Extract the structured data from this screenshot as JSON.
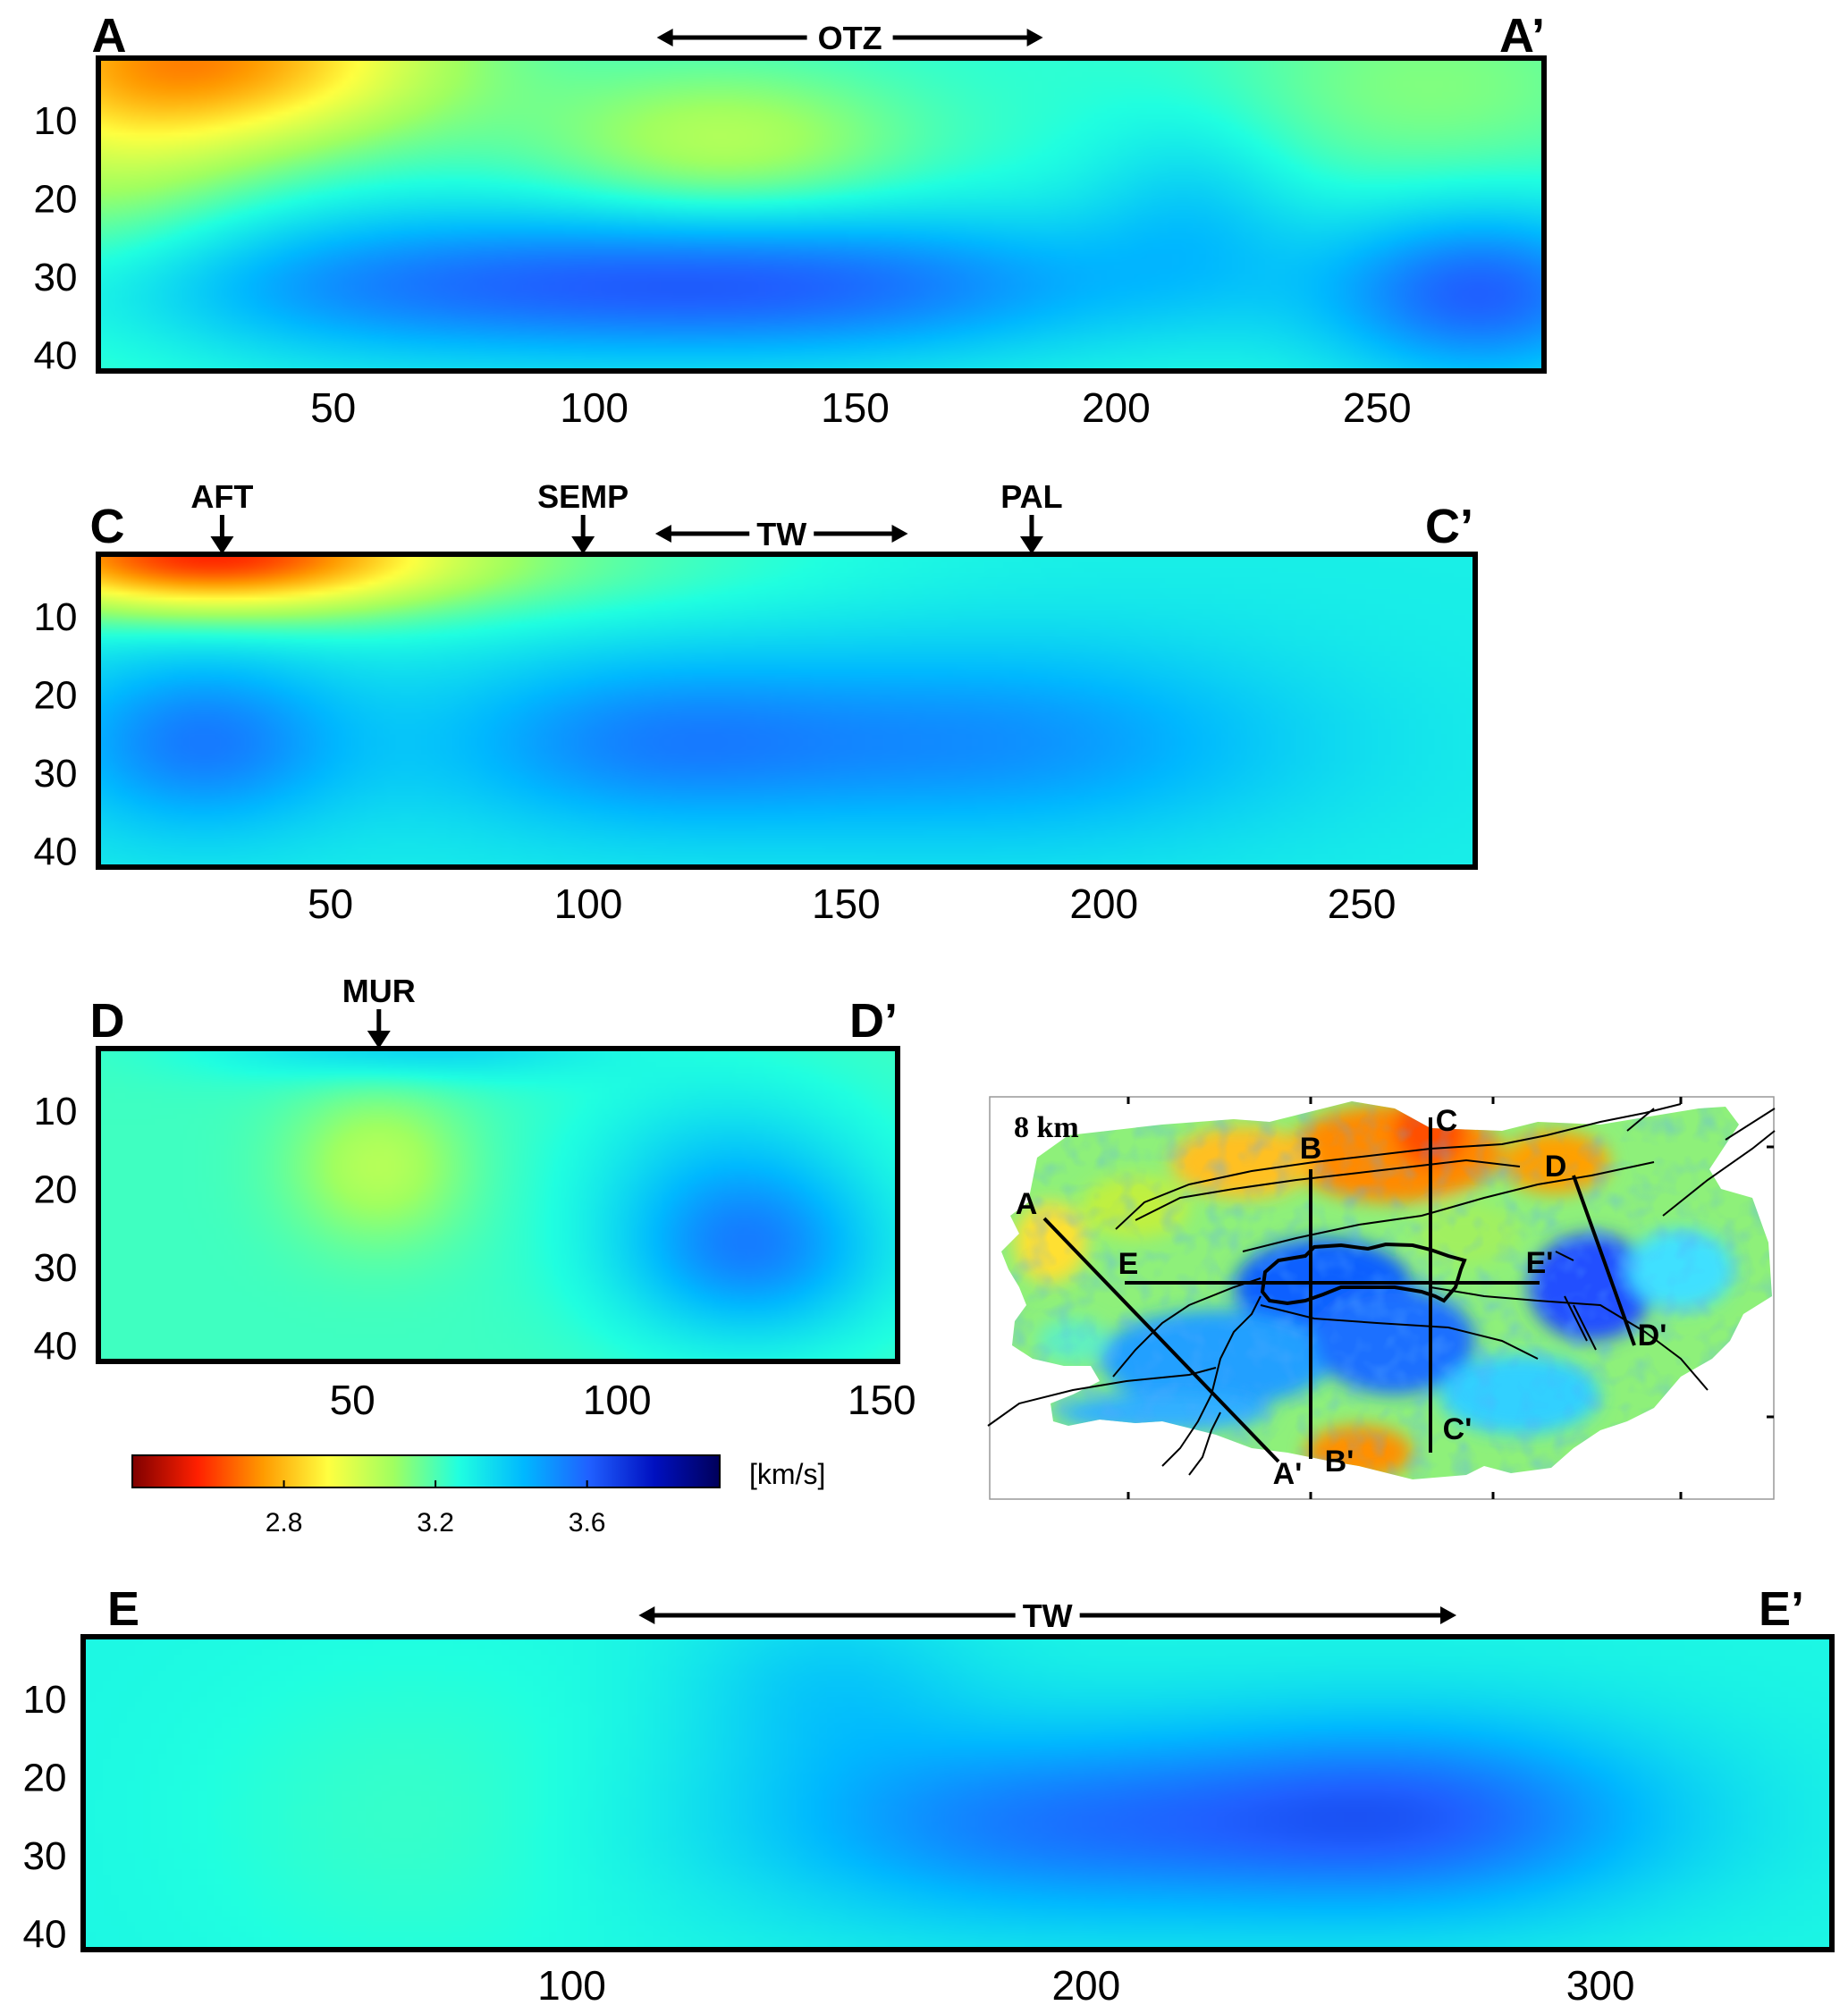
{
  "colorbar": {
    "unit": "[km/s]",
    "ticks": [
      2.8,
      3.2,
      3.6
    ],
    "range": [
      2.4,
      3.95
    ],
    "colors": [
      "#7f0000",
      "#ff2000",
      "#ff9a00",
      "#ffff40",
      "#a0ff60",
      "#20ffe0",
      "#00b8ff",
      "#2060ff",
      "#0010c0",
      "#00005a"
    ]
  },
  "inset": {
    "label": "8 km",
    "profile_labels": [
      "A",
      "A'",
      "B",
      "B'",
      "C",
      "C'",
      "D",
      "D'",
      "E",
      "E'"
    ]
  },
  "chart_data": [
    {
      "type": "heatmap",
      "id": "AA",
      "title_left": "A",
      "title_right": "A’",
      "x_ticks": [
        50,
        100,
        150,
        200,
        250
      ],
      "xlim": [
        5,
        282
      ],
      "y_ticks": [
        10,
        20,
        30,
        40
      ],
      "ylim": [
        2,
        42
      ],
      "background": 3.25,
      "anomalies": [
        {
          "x": 30,
          "y": 2,
          "sx": 30,
          "sy": 8,
          "dv": -0.45
        },
        {
          "x": 5,
          "y": 12,
          "sx": 22,
          "sy": 18,
          "dv": -0.17
        },
        {
          "x": 125,
          "y": 13,
          "sx": 25,
          "sy": 7,
          "dv": -0.2
        },
        {
          "x": 260,
          "y": 6,
          "sx": 30,
          "sy": 10,
          "dv": -0.12
        },
        {
          "x": 70,
          "y": 31,
          "sx": 55,
          "sy": 7,
          "dv": 0.27
        },
        {
          "x": 150,
          "y": 31,
          "sx": 45,
          "sy": 7,
          "dv": 0.24
        },
        {
          "x": 270,
          "y": 32,
          "sx": 22,
          "sy": 8,
          "dv": 0.35
        },
        {
          "x": 215,
          "y": 21,
          "sx": 15,
          "sy": 9,
          "dv": 0.12
        }
      ],
      "annotations": [
        {
          "type": "span",
          "label": "OTZ",
          "x1": 112,
          "x2": 186
        }
      ]
    },
    {
      "type": "heatmap",
      "id": "CC",
      "title_left": "C",
      "title_right": "C’",
      "x_ticks": [
        50,
        100,
        150,
        200,
        250
      ],
      "xlim": [
        5,
        272
      ],
      "y_ticks": [
        10,
        20,
        30,
        40
      ],
      "ylim": [
        2,
        42
      ],
      "background": 3.3,
      "anomalies": [
        {
          "x": 25,
          "y": 2,
          "sx": 30,
          "sy": 5,
          "dv": -0.6
        },
        {
          "x": 60,
          "y": 3,
          "sx": 55,
          "sy": 6,
          "dv": -0.15
        },
        {
          "x": 25,
          "y": 26,
          "sx": 20,
          "sy": 8,
          "dv": 0.25
        },
        {
          "x": 110,
          "y": 26,
          "sx": 30,
          "sy": 8,
          "dv": 0.2
        },
        {
          "x": 180,
          "y": 26,
          "sx": 40,
          "sy": 9,
          "dv": 0.2
        }
      ],
      "annotations": [
        {
          "type": "arrow",
          "label": "AFT",
          "x": 29
        },
        {
          "type": "arrow",
          "label": "SEMP",
          "x": 99
        },
        {
          "type": "span",
          "label": "TW",
          "x1": 113,
          "x2": 162
        },
        {
          "type": "arrow",
          "label": "PAL",
          "x": 186
        }
      ]
    },
    {
      "type": "heatmap",
      "id": "DD",
      "title_left": "D",
      "title_right": "D’",
      "x_ticks": [
        50,
        100,
        150
      ],
      "xlim": [
        2,
        153
      ],
      "y_ticks": [
        10,
        20,
        30,
        40
      ],
      "ylim": [
        2,
        42
      ],
      "background": 3.22,
      "anomalies": [
        {
          "x": 55,
          "y": 17,
          "sx": 12,
          "sy": 7,
          "dv": -0.17
        },
        {
          "x": 60,
          "y": 2,
          "sx": 25,
          "sy": 3,
          "dv": 0.15
        },
        {
          "x": 125,
          "y": 28,
          "sx": 18,
          "sy": 8,
          "dv": 0.3
        },
        {
          "x": 120,
          "y": 15,
          "sx": 20,
          "sy": 8,
          "dv": 0.1
        }
      ],
      "annotations": [
        {
          "type": "arrow",
          "label": "MUR",
          "x": 55
        }
      ]
    },
    {
      "type": "heatmap",
      "id": "EE",
      "title_left": "E",
      "title_right": "E’",
      "x_ticks": [
        100,
        200,
        300
      ],
      "xlim": [
        5,
        345
      ],
      "y_ticks": [
        10,
        20,
        30,
        40
      ],
      "ylim": [
        2,
        42
      ],
      "background": 3.28,
      "anomalies": [
        {
          "x": 190,
          "y": 26,
          "sx": 40,
          "sy": 9,
          "dv": 0.25
        },
        {
          "x": 265,
          "y": 25,
          "sx": 35,
          "sy": 9,
          "dv": 0.3
        },
        {
          "x": 150,
          "y": 8,
          "sx": 20,
          "sy": 8,
          "dv": 0.1
        },
        {
          "x": 70,
          "y": 25,
          "sx": 30,
          "sy": 15,
          "dv": -0.05
        }
      ],
      "annotations": [
        {
          "type": "span",
          "label": "TW",
          "x1": 113,
          "x2": 272
        }
      ]
    }
  ]
}
